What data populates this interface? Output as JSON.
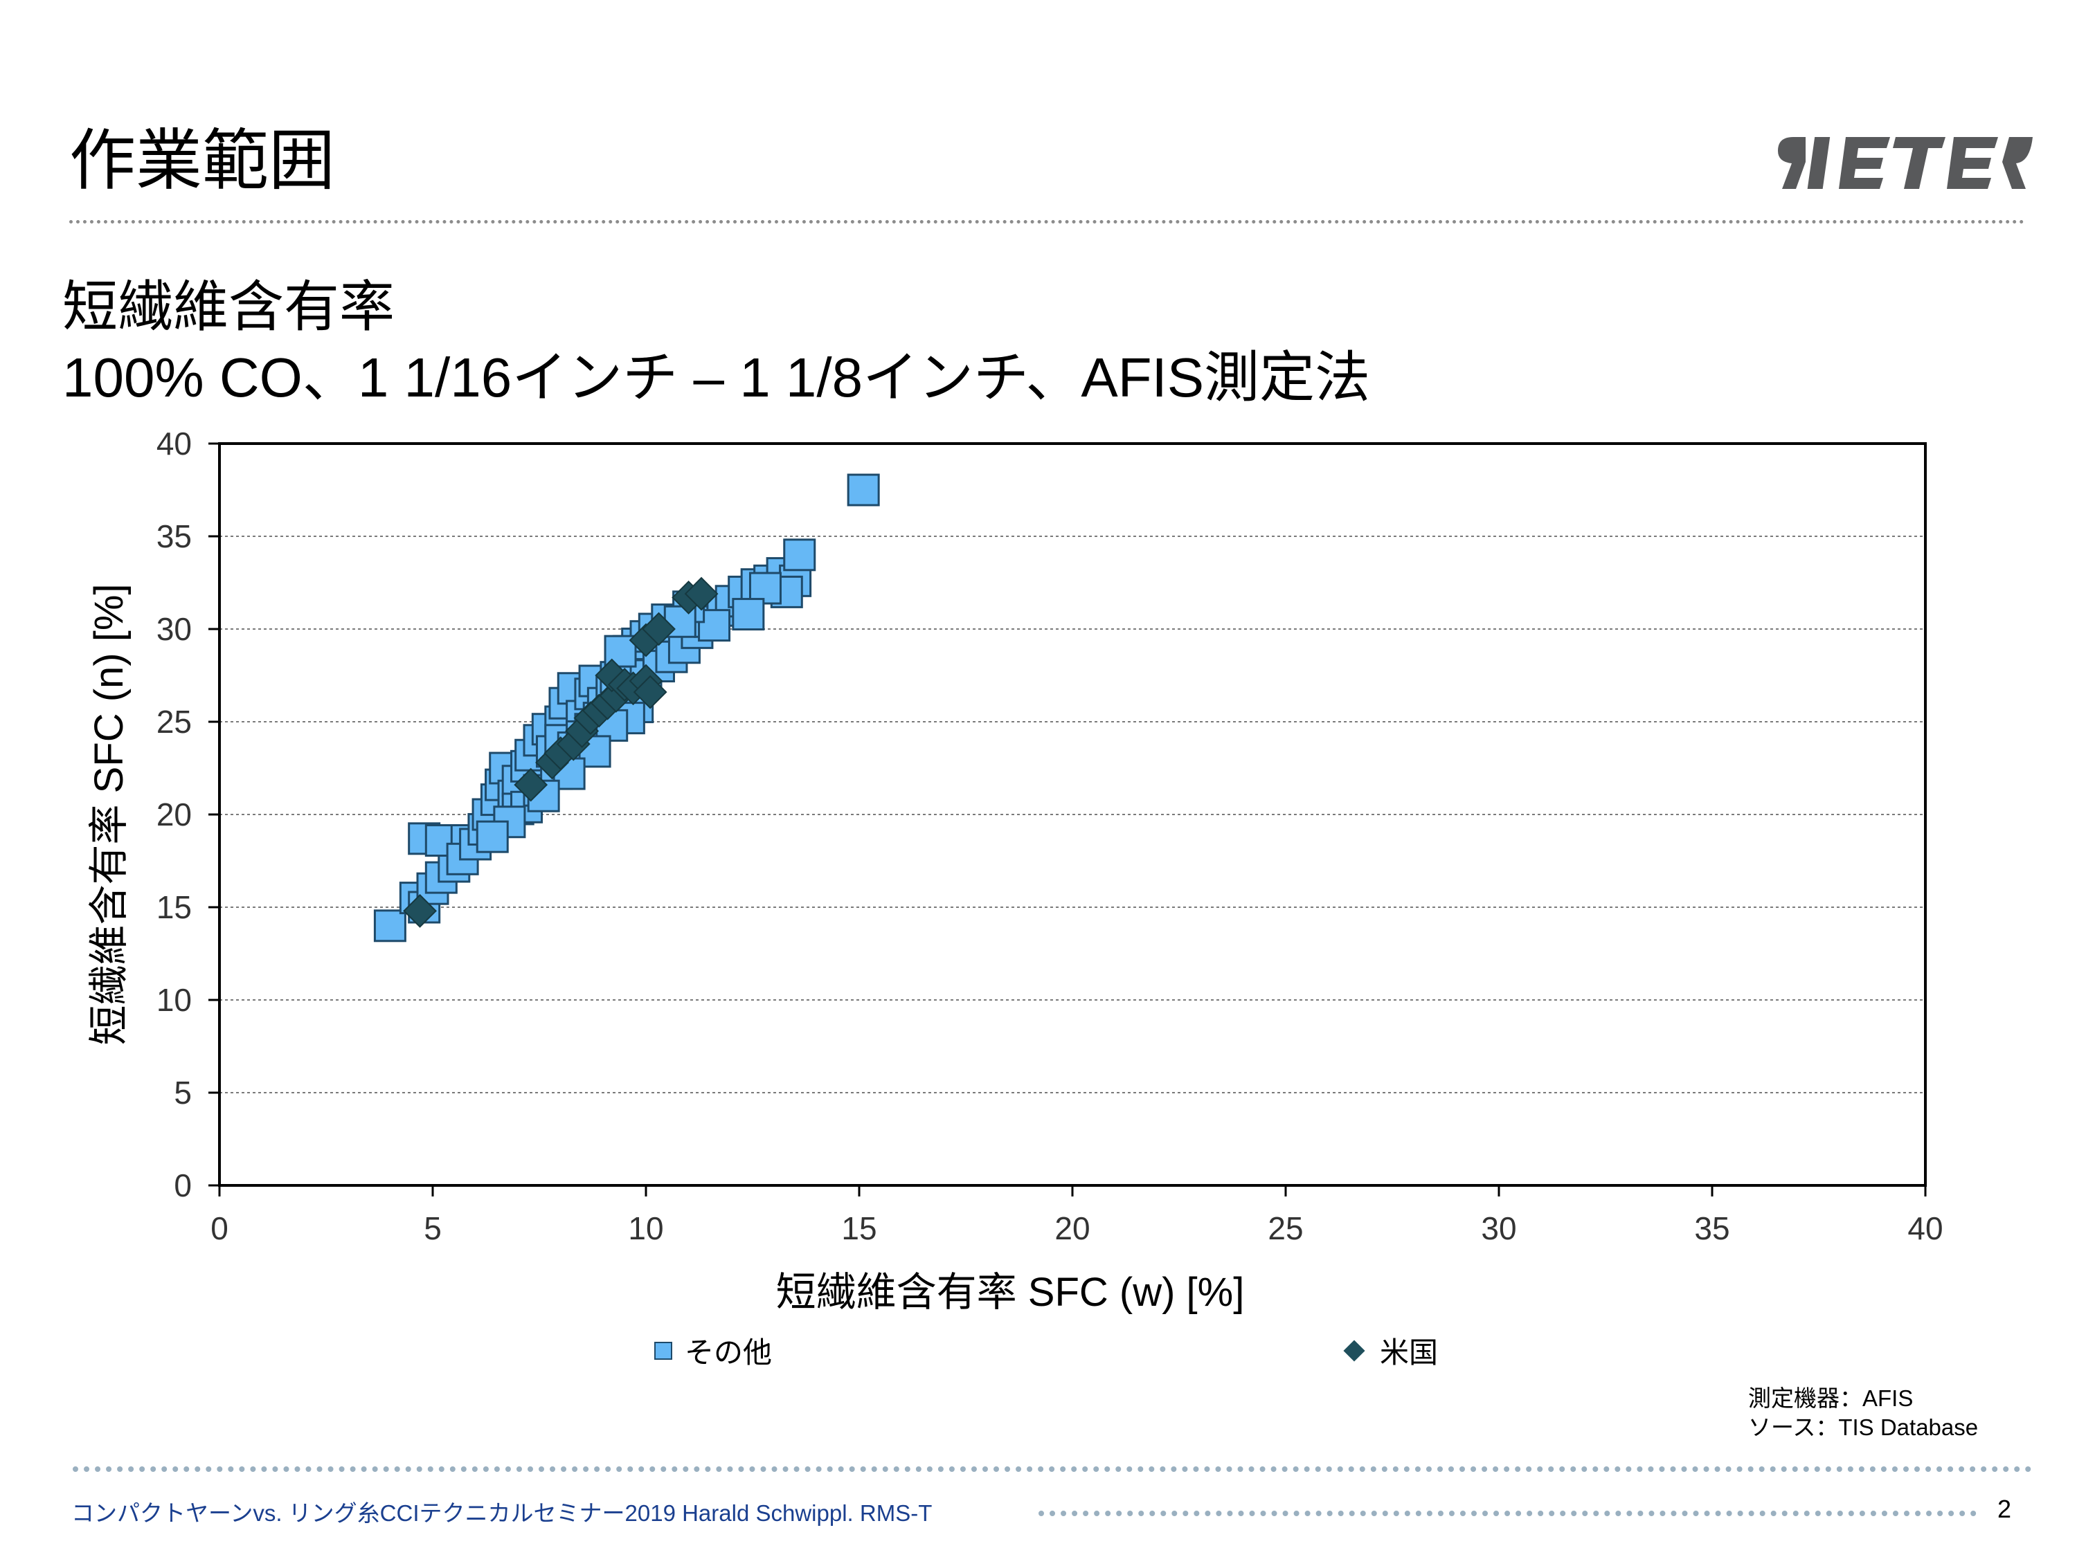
{
  "header": {
    "title": "作業範囲",
    "logo_text": "RIETER"
  },
  "subtitle": {
    "line1": "短繊維含有率",
    "line2": "100% CO、1 1/16インチ – 1 1/8インチ、AFIS測定法"
  },
  "chart_data": {
    "type": "scatter",
    "xlabel": "短繊維含有率 SFC (w) [%]",
    "ylabel": "短繊維含有率 SFC (n) [%]",
    "xlim": [
      0,
      40
    ],
    "ylim": [
      0,
      40
    ],
    "x_ticks": [
      0,
      5,
      10,
      15,
      20,
      25,
      30,
      35,
      40
    ],
    "y_ticks": [
      0,
      5,
      10,
      15,
      20,
      25,
      30,
      35,
      40
    ],
    "grid": "horizontal dotted",
    "legend_position": "bottom",
    "series": [
      {
        "name": "その他",
        "marker": "square",
        "color": "#66b8f5",
        "edge_color": "#1e4a6a",
        "points": [
          [
            4.0,
            14.0
          ],
          [
            4.6,
            15.5
          ],
          [
            4.8,
            15.0
          ],
          [
            5.0,
            16.0
          ],
          [
            5.2,
            16.6
          ],
          [
            5.5,
            17.2
          ],
          [
            4.8,
            18.7
          ],
          [
            5.2,
            18.6
          ],
          [
            5.8,
            18.6
          ],
          [
            5.7,
            17.6
          ],
          [
            6.0,
            18.4
          ],
          [
            6.2,
            19.2
          ],
          [
            6.3,
            20.0
          ],
          [
            6.5,
            20.8
          ],
          [
            6.6,
            21.6
          ],
          [
            6.7,
            22.5
          ],
          [
            6.9,
            21.0
          ],
          [
            7.0,
            21.8
          ],
          [
            7.2,
            22.6
          ],
          [
            7.3,
            23.2
          ],
          [
            7.5,
            24.0
          ],
          [
            7.7,
            24.6
          ],
          [
            7.8,
            23.4
          ],
          [
            7.0,
            20.3
          ],
          [
            7.2,
            20.4
          ],
          [
            7.5,
            21.3
          ],
          [
            7.9,
            22.2
          ],
          [
            8.0,
            25.0
          ],
          [
            8.1,
            26.0
          ],
          [
            8.3,
            26.8
          ],
          [
            8.5,
            25.3
          ],
          [
            8.7,
            26.5
          ],
          [
            8.8,
            27.2
          ],
          [
            8.0,
            24.0
          ],
          [
            8.3,
            23.6
          ],
          [
            8.5,
            24.2
          ],
          [
            8.7,
            24.6
          ],
          [
            8.9,
            25.2
          ],
          [
            9.0,
            26.0
          ],
          [
            9.2,
            26.6
          ],
          [
            9.3,
            27.4
          ],
          [
            9.5,
            28.0
          ],
          [
            9.6,
            28.8
          ],
          [
            9.8,
            29.2
          ],
          [
            10.0,
            29.6
          ],
          [
            10.2,
            30.0
          ],
          [
            10.5,
            30.5
          ],
          [
            10.0,
            27.5
          ],
          [
            10.3,
            28.0
          ],
          [
            10.6,
            28.5
          ],
          [
            10.9,
            29.0
          ],
          [
            11.2,
            29.8
          ],
          [
            11.5,
            30.4
          ],
          [
            11.8,
            31.0
          ],
          [
            12.0,
            31.5
          ],
          [
            12.3,
            32.0
          ],
          [
            12.6,
            32.4
          ],
          [
            12.9,
            32.6
          ],
          [
            13.2,
            33.0
          ],
          [
            13.5,
            32.6
          ],
          [
            13.6,
            34.0
          ],
          [
            13.3,
            32.0
          ],
          [
            12.8,
            32.2
          ],
          [
            12.4,
            30.8
          ],
          [
            11.6,
            30.2
          ],
          [
            9.4,
            28.8
          ],
          [
            11.0,
            31.2
          ],
          [
            10.8,
            30.4
          ],
          [
            9.8,
            25.8
          ],
          [
            9.6,
            25.2
          ],
          [
            9.2,
            24.8
          ],
          [
            8.8,
            23.4
          ],
          [
            8.2,
            22.2
          ],
          [
            7.6,
            21.0
          ],
          [
            6.8,
            19.6
          ],
          [
            6.4,
            18.8
          ],
          [
            15.1,
            37.5
          ]
        ]
      },
      {
        "name": "米国",
        "marker": "diamond",
        "color": "#1f4f5c",
        "points": [
          [
            4.7,
            14.8
          ],
          [
            7.3,
            21.6
          ],
          [
            7.8,
            22.8
          ],
          [
            8.0,
            23.3
          ],
          [
            8.3,
            23.8
          ],
          [
            8.5,
            24.5
          ],
          [
            8.7,
            25.2
          ],
          [
            8.9,
            25.6
          ],
          [
            9.1,
            26.0
          ],
          [
            9.3,
            26.4
          ],
          [
            9.2,
            27.5
          ],
          [
            9.5,
            27.0
          ],
          [
            9.7,
            26.8
          ],
          [
            10.0,
            27.2
          ],
          [
            10.1,
            26.6
          ],
          [
            10.0,
            29.4
          ],
          [
            10.3,
            30.0
          ],
          [
            11.0,
            31.7
          ],
          [
            11.3,
            31.9
          ]
        ]
      }
    ]
  },
  "source_note": {
    "line1": "測定機器：AFIS",
    "line2": "ソース：TIS Database"
  },
  "footer": {
    "text": "コンパクトヤーンvs. リング糸CCIテクニカルセミナー2019 Harald Schwippl. RMS-T",
    "page_number": "2"
  }
}
